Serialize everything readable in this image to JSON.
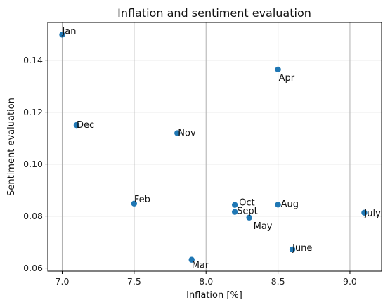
{
  "chart_data": {
    "type": "scatter",
    "title": "Inflation and sentiment evaluation",
    "xlabel": "Inflation [%]",
    "ylabel": "Sentiment evaluation",
    "xlim": [
      6.9,
      9.22
    ],
    "ylim": [
      0.0588,
      0.1545
    ],
    "xticks": [
      7.0,
      7.5,
      8.0,
      8.5,
      9.0
    ],
    "xtick_labels": [
      "7.0",
      "7.5",
      "8.0",
      "8.5",
      "9.0"
    ],
    "yticks": [
      0.06,
      0.08,
      0.1,
      0.12,
      0.14
    ],
    "ytick_labels": [
      "0.06",
      "0.08",
      "0.10",
      "0.12",
      "0.14"
    ],
    "grid": true,
    "marker_color": "#1f77b4",
    "points": [
      {
        "label": "Jan",
        "x": 7.0,
        "y": 0.1498
      },
      {
        "label": "Feb",
        "x": 7.5,
        "y": 0.0848
      },
      {
        "label": "Mar",
        "x": 7.9,
        "y": 0.0632
      },
      {
        "label": "Apr",
        "x": 8.5,
        "y": 0.1364
      },
      {
        "label": "May",
        "x": 8.3,
        "y": 0.0794
      },
      {
        "label": "June",
        "x": 8.6,
        "y": 0.0672
      },
      {
        "label": "July",
        "x": 9.1,
        "y": 0.0813
      },
      {
        "label": "Aug",
        "x": 8.5,
        "y": 0.0844
      },
      {
        "label": "Sept",
        "x": 8.2,
        "y": 0.0816
      },
      {
        "label": "Oct",
        "x": 8.2,
        "y": 0.0843
      },
      {
        "label": "Nov",
        "x": 7.8,
        "y": 0.1119
      },
      {
        "label": "Dec",
        "x": 7.1,
        "y": 0.115
      }
    ]
  }
}
